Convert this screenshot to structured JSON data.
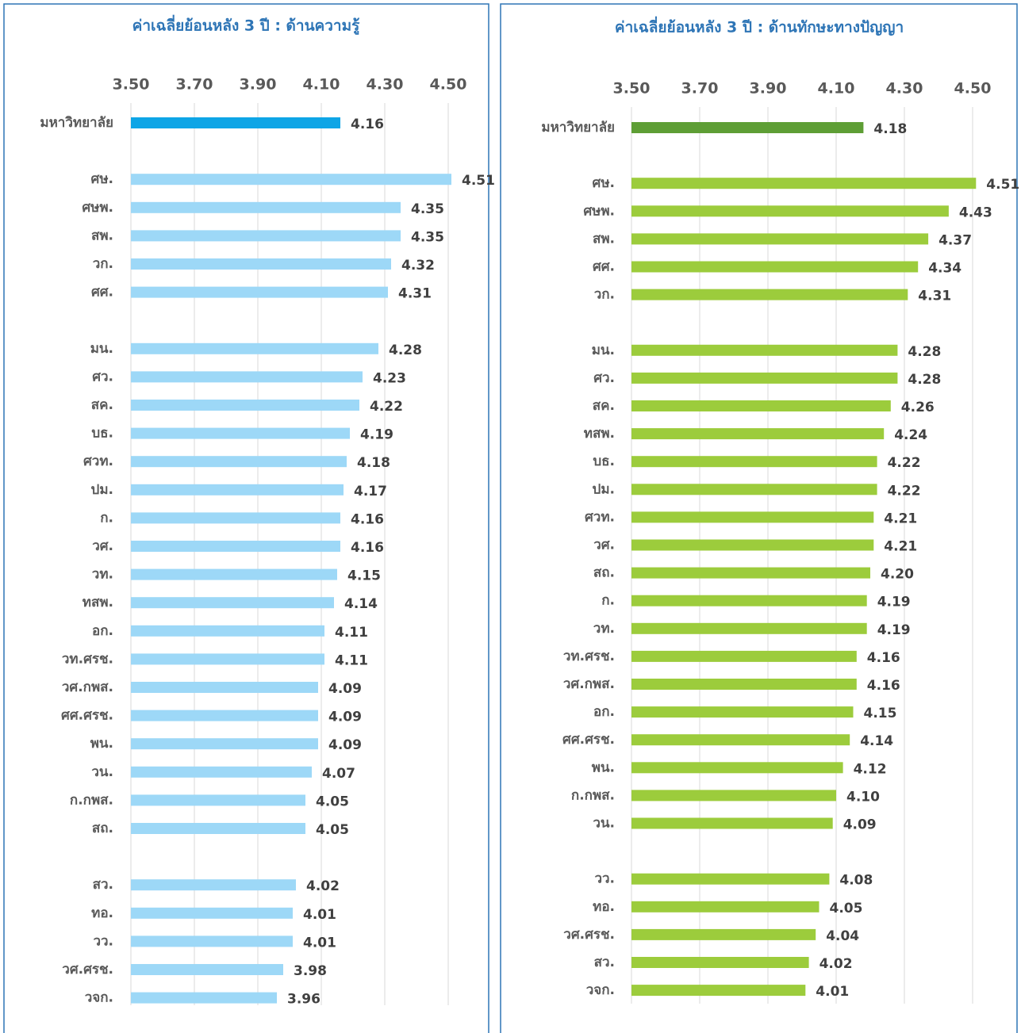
{
  "chart_data": [
    {
      "type": "bar",
      "orientation": "horizontal",
      "title": "ค่าเฉลี่ยย้อนหลัง 3 ปี : ด้านความรู้",
      "categories": [
        "มหาวิทยาลัย",
        null,
        "ศษ.",
        "ศษพ.",
        "สพ.",
        "วก.",
        "ศศ.",
        null,
        "มน.",
        "ศว.",
        "สค.",
        "บธ.",
        "ศวท.",
        "ปม.",
        "ก.",
        "วศ.",
        "วท.",
        "ทสพ.",
        "อก.",
        "วท.ศรช.",
        "วศ.กพส.",
        "ศศ.ศรช.",
        "พน.",
        "วน.",
        "ก.กพส.",
        "สถ.",
        null,
        "สว.",
        "ทอ.",
        "วว.",
        "วศ.ศรช.",
        "วจก."
      ],
      "values": [
        4.16,
        null,
        4.51,
        4.35,
        4.35,
        4.32,
        4.31,
        null,
        4.28,
        4.23,
        4.22,
        4.19,
        4.18,
        4.17,
        4.16,
        4.16,
        4.15,
        4.14,
        4.11,
        4.11,
        4.09,
        4.09,
        4.09,
        4.07,
        4.05,
        4.05,
        null,
        4.02,
        4.01,
        4.01,
        3.98,
        3.96
      ],
      "value_labels": [
        "4.16",
        null,
        "4.51",
        "4.35",
        "4.35",
        "4.32",
        "4.31",
        null,
        "4.28",
        "4.23",
        "4.22",
        "4.19",
        "4.18",
        "4.17",
        "4.16",
        "4.16",
        "4.15",
        "4.14",
        "4.11",
        "4.11",
        "4.09",
        "4.09",
        "4.09",
        "4.07",
        "4.05",
        "4.05",
        null,
        "4.02",
        "4.01",
        "4.01",
        "3.98",
        "3.96"
      ],
      "color": "#9dd8f7",
      "highlight_color": "#0ea5e6",
      "xlim": [
        3.5,
        4.5
      ],
      "xticks": [
        {
          "value": 3.5,
          "label": "3.50"
        },
        {
          "value": 3.7,
          "label": "3.70"
        },
        {
          "value": 3.9,
          "label": "3.90"
        },
        {
          "value": 4.1,
          "label": "4.10"
        },
        {
          "value": 4.3,
          "label": "4.30"
        },
        {
          "value": 4.5,
          "label": "4.50"
        }
      ],
      "grid": true
    },
    {
      "type": "bar",
      "orientation": "horizontal",
      "title": "ค่าเฉลี่ยย้อนหลัง 3 ปี : ด้านทักษะทางปัญญา",
      "categories": [
        "มหาวิทยาลัย",
        null,
        "ศษ.",
        "ศษพ.",
        "สพ.",
        "ศศ.",
        "วก.",
        null,
        "มน.",
        "ศว.",
        "สค.",
        "ทสพ.",
        "บธ.",
        "ปม.",
        "ศวท.",
        "วศ.",
        "สถ.",
        "ก.",
        "วท.",
        "วท.ศรช.",
        "วศ.กพส.",
        "อก.",
        "ศศ.ศรช.",
        "พน.",
        "ก.กพส.",
        "วน.",
        null,
        "วว.",
        "ทอ.",
        "วศ.ศรช.",
        "สว.",
        "วจก."
      ],
      "values": [
        4.18,
        null,
        4.51,
        4.43,
        4.37,
        4.34,
        4.31,
        null,
        4.28,
        4.28,
        4.26,
        4.24,
        4.22,
        4.22,
        4.21,
        4.21,
        4.2,
        4.19,
        4.19,
        4.16,
        4.16,
        4.15,
        4.14,
        4.12,
        4.1,
        4.09,
        null,
        4.08,
        4.05,
        4.04,
        4.02,
        4.01
      ],
      "value_labels": [
        "4.18",
        null,
        "4.51",
        "4.43",
        "4.37",
        "4.34",
        "4.31",
        null,
        "4.28",
        "4.28",
        "4.26",
        "4.24",
        "4.22",
        "4.22",
        "4.21",
        "4.21",
        "4.20",
        "4.19",
        "4.19",
        "4.16",
        "4.16",
        "4.15",
        "4.14",
        "4.12",
        "4.10",
        "4.09",
        null,
        "4.08",
        "4.05",
        "4.04",
        "4.02",
        "4.01"
      ],
      "color": "#9ccc3c",
      "highlight_color": "#5e9e35",
      "xlim": [
        3.5,
        4.5
      ],
      "xticks": [
        {
          "value": 3.5,
          "label": "3.50"
        },
        {
          "value": 3.7,
          "label": "3.70"
        },
        {
          "value": 3.9,
          "label": "3.90"
        },
        {
          "value": 4.1,
          "label": "4.10"
        },
        {
          "value": 4.3,
          "label": "4.30"
        },
        {
          "value": 4.5,
          "label": "4.50"
        }
      ],
      "grid": true
    }
  ]
}
